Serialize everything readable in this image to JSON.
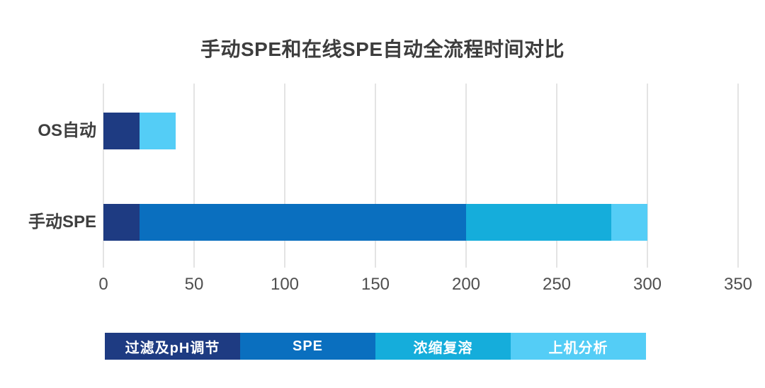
{
  "chart_data": {
    "type": "bar",
    "orientation": "horizontal",
    "stacked": true,
    "title": "手动SPE和在线SPE自动全流程时间对比",
    "categories": [
      "OS自动",
      "手动SPE"
    ],
    "series": [
      {
        "name": "过滤及pH调节",
        "color": "#1e3b82",
        "values": [
          20,
          20
        ]
      },
      {
        "name": "SPE",
        "color": "#0a6fbf",
        "values": [
          0,
          180
        ]
      },
      {
        "name": "浓缩复溶",
        "color": "#15addb",
        "values": [
          0,
          80
        ]
      },
      {
        "name": "上机分析",
        "color": "#54cdf6",
        "values": [
          20,
          20
        ]
      }
    ],
    "xticks": [
      0,
      50,
      100,
      150,
      200,
      250,
      300,
      350
    ],
    "xlim": [
      0,
      350
    ],
    "grid": true,
    "gridline_color": "#e4e4e4",
    "legend_position": "bottom",
    "legend_style": "colored-band",
    "background_color": "#ffffff"
  }
}
